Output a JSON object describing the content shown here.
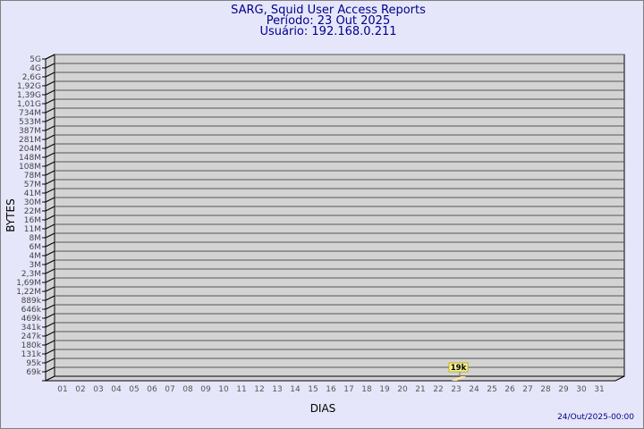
{
  "header": {
    "title": "SARG, Squid User Access Reports",
    "period": "Período: 23 Out 2025",
    "user": "Usuário: 192.168.0.211"
  },
  "footer": {
    "timestamp": "24/Out/2025-00:00"
  },
  "colors": {
    "background": "#e6e6fa",
    "plot": "#d3d3d3",
    "bar": "#ffe99a",
    "text": "#00008b"
  },
  "chart_data": {
    "type": "bar",
    "xlabel": "DIAS",
    "ylabel": "BYTES",
    "y_scale": "log",
    "categories": [
      "01",
      "02",
      "03",
      "04",
      "05",
      "06",
      "07",
      "08",
      "09",
      "10",
      "11",
      "12",
      "13",
      "14",
      "15",
      "16",
      "17",
      "18",
      "19",
      "20",
      "21",
      "22",
      "23",
      "24",
      "25",
      "26",
      "27",
      "28",
      "29",
      "30",
      "31"
    ],
    "yticks": [
      "5G",
      "4G",
      "2,6G",
      "1,92G",
      "1,39G",
      "1,01G",
      "734M",
      "533M",
      "387M",
      "281M",
      "204M",
      "148M",
      "108M",
      "78M",
      "57M",
      "41M",
      "30M",
      "22M",
      "16M",
      "11M",
      "8M",
      "6M",
      "4M",
      "3M",
      "2,3M",
      "1,69M",
      "1,22M",
      "889k",
      "646k",
      "469k",
      "341k",
      "247k",
      "180k",
      "131k",
      "95k",
      "69k"
    ],
    "values": [
      null,
      null,
      null,
      null,
      null,
      null,
      null,
      null,
      null,
      null,
      null,
      null,
      null,
      null,
      null,
      null,
      null,
      null,
      null,
      null,
      null,
      null,
      19000,
      null,
      null,
      null,
      null,
      null,
      null,
      null,
      null
    ],
    "data_labels": {
      "23": "19k"
    },
    "grid": true
  }
}
